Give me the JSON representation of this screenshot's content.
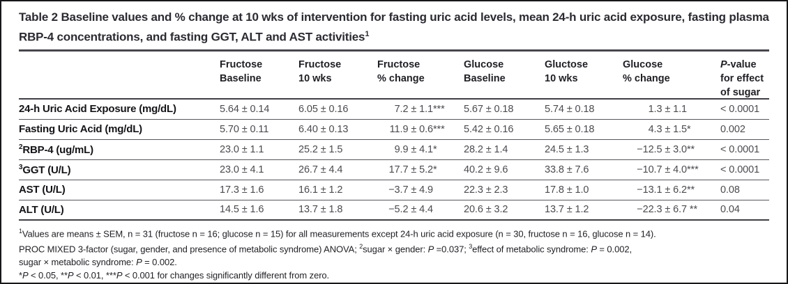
{
  "title": {
    "segments": [
      {
        "t": "Table 2 Baseline values and % change at 10 wks of intervention for fasting uric acid levels, mean 24-h uric acid exposure, fasting plasma RBP-4 concentrations, and fasting GGT, ALT and AST activities"
      },
      {
        "s": "1"
      }
    ]
  },
  "table": {
    "header": {
      "col1": {
        "line1": "Fructose",
        "line2": "Baseline"
      },
      "col2": {
        "line1": "Fructose",
        "line2": "10 wks"
      },
      "col3": {
        "line1": "Fructose",
        "line2": "% change"
      },
      "col4": {
        "line1": "Glucose",
        "line2": "Baseline"
      },
      "col5": {
        "line1": "Gluctose",
        "line2": "10 wks"
      },
      "col6": {
        "line1": "Glucose",
        "line2": "% change"
      },
      "col7": {
        "line1": [
          {
            "i": "P"
          },
          {
            "t": "-value"
          }
        ],
        "line2": "for effect",
        "line3": "of sugar"
      }
    },
    "rows": [
      {
        "label": [
          {
            "t": "24-h Uric Acid Exposure (mg/dL)"
          }
        ],
        "f_base": "5.64 ± 0.14",
        "f_10wk": "6.05 ± 0.16",
        "f_chg": {
          "v": "7.2 ± 1.1",
          "stars": "***"
        },
        "g_base": "5.67 ± 0.18",
        "g_10wk": "5.74 ± 0.18",
        "g_chg": {
          "v": "1.3 ± 1.1",
          "stars": ""
        },
        "p": "< 0.0001"
      },
      {
        "label": [
          {
            "t": "Fasting Uric Acid (mg/dL)"
          }
        ],
        "f_base": "5.70 ± 0.11",
        "f_10wk": "6.40 ± 0.13",
        "f_chg": {
          "v": "11.9 ± 0.6",
          "stars": "***"
        },
        "g_base": "5.42 ± 0.16",
        "g_10wk": "5.65 ± 0.18",
        "g_chg": {
          "v": "4.3 ± 1.5",
          "stars": "*"
        },
        "p": "0.002"
      },
      {
        "label": [
          {
            "s": "2"
          },
          {
            "t": "RBP-4 (ug/mL)"
          }
        ],
        "f_base": "23.0 ± 1.1",
        "f_10wk": "25.2 ± 1.5",
        "f_chg": {
          "v": "9.9 ± 4.1",
          "stars": "*"
        },
        "g_base": "28.2 ± 1.4",
        "g_10wk": "24.5 ± 1.3",
        "g_chg": {
          "v": "−12.5 ± 3.0",
          "stars": "**"
        },
        "p": "< 0.0001"
      },
      {
        "label": [
          {
            "s": "3"
          },
          {
            "t": "GGT (U/L)"
          }
        ],
        "f_base": "23.0 ± 4.1",
        "f_10wk": "26.7 ± 4.4",
        "f_chg": {
          "v": "17.7 ± 5.2",
          "stars": "*"
        },
        "g_base": "40.2 ± 9.6",
        "g_10wk": "33.8 ± 7.6",
        "g_chg": {
          "v": "−10.7 ± 4.0",
          "stars": "***"
        },
        "p": "< 0.0001"
      },
      {
        "label": [
          {
            "t": "AST (U/L)"
          }
        ],
        "f_base": "17.3 ± 1.6",
        "f_10wk": "16.1 ± 1.2",
        "f_chg": {
          "v": "−3.7 ± 4.9",
          "stars": ""
        },
        "g_base": "22.3 ± 2.3",
        "g_10wk": "17.8 ± 1.0",
        "g_chg": {
          "v": "−13.1 ± 6.2",
          "stars": "**"
        },
        "p": "0.08"
      },
      {
        "label": [
          {
            "t": "ALT (U/L)"
          }
        ],
        "f_base": "14.5 ± 1.6",
        "f_10wk": "13.7 ± 1.8",
        "f_chg": {
          "v": "−5.2 ± 4.4",
          "stars": ""
        },
        "g_base": "20.6 ± 3.2",
        "g_10wk": "13.7 ± 1.2",
        "g_chg": {
          "v": "−22.3 ± 6.7",
          "stars": " **"
        },
        "p": "0.04"
      }
    ]
  },
  "footnotes": {
    "line1": [
      {
        "s": "1"
      },
      {
        "t": "Values are means ± SEM, n = 31 (fructose n = 16; glucose n = 15) for all measurements except 24-h uric acid exposure (n = 30, fructose n = 16, glucose n = 14)."
      }
    ],
    "line2": [
      {
        "t": "PROC MIXED 3-factor (sugar, gender, and presence of metabolic syndrome) ANOVA; "
      },
      {
        "s": "2"
      },
      {
        "t": "sugar × gender: "
      },
      {
        "i": "P"
      },
      {
        "t": " =0.037; "
      },
      {
        "s": "3"
      },
      {
        "t": "effect of metabolic syndrome: "
      },
      {
        "i": "P"
      },
      {
        "t": " = 0.002,"
      }
    ],
    "line3": [
      {
        "t": "sugar × metabolic syndrome: "
      },
      {
        "i": "P"
      },
      {
        "t": " = 0.002."
      }
    ],
    "line4": [
      {
        "t": "*"
      },
      {
        "i": "P"
      },
      {
        "t": " < 0.05, **"
      },
      {
        "i": "P"
      },
      {
        "t": " < 0.01, ***"
      },
      {
        "i": "P"
      },
      {
        "t": " < 0.001 for changes significantly different from zero."
      }
    ]
  }
}
